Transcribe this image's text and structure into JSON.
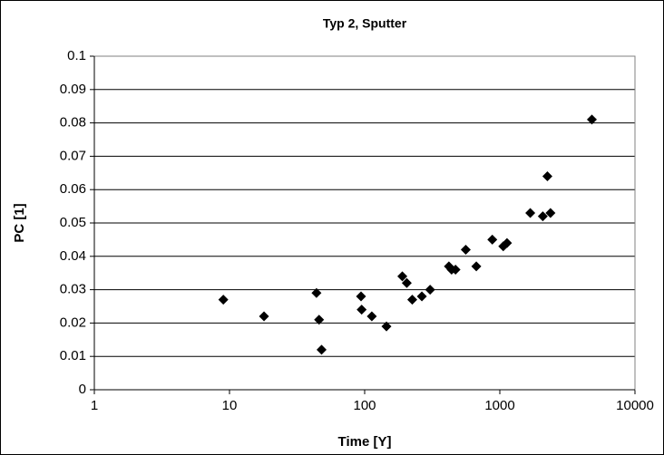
{
  "chart_data": {
    "type": "scatter",
    "title": "Typ 2, Sputter",
    "xlabel": "Time [Y]",
    "ylabel": "PC [1]",
    "series": [
      {
        "name": "PC",
        "color": "#000000",
        "x": [
          9,
          18,
          44,
          46,
          48,
          94,
          95,
          113,
          145,
          190,
          205,
          225,
          265,
          305,
          420,
          440,
          470,
          560,
          670,
          880,
          1060,
          1130,
          1680,
          2080,
          2250,
          2370,
          4800
        ],
        "values": [
          0.027,
          0.022,
          0.029,
          0.021,
          0.012,
          0.028,
          0.024,
          0.022,
          0.019,
          0.034,
          0.032,
          0.027,
          0.028,
          0.03,
          0.037,
          0.036,
          0.036,
          0.042,
          0.037,
          0.045,
          0.043,
          0.044,
          0.053,
          0.052,
          0.064,
          0.053,
          0.081
        ]
      }
    ],
    "xlim": [
      1,
      10000
    ],
    "xticks": [
      1,
      10,
      100,
      1000,
      10000
    ],
    "xlog": true,
    "ylim": [
      0,
      0.1
    ],
    "yticks": [
      0,
      0.01,
      0.02,
      0.03,
      0.04,
      0.05,
      0.06,
      0.07,
      0.08,
      0.09,
      0.1
    ],
    "grid": true
  }
}
